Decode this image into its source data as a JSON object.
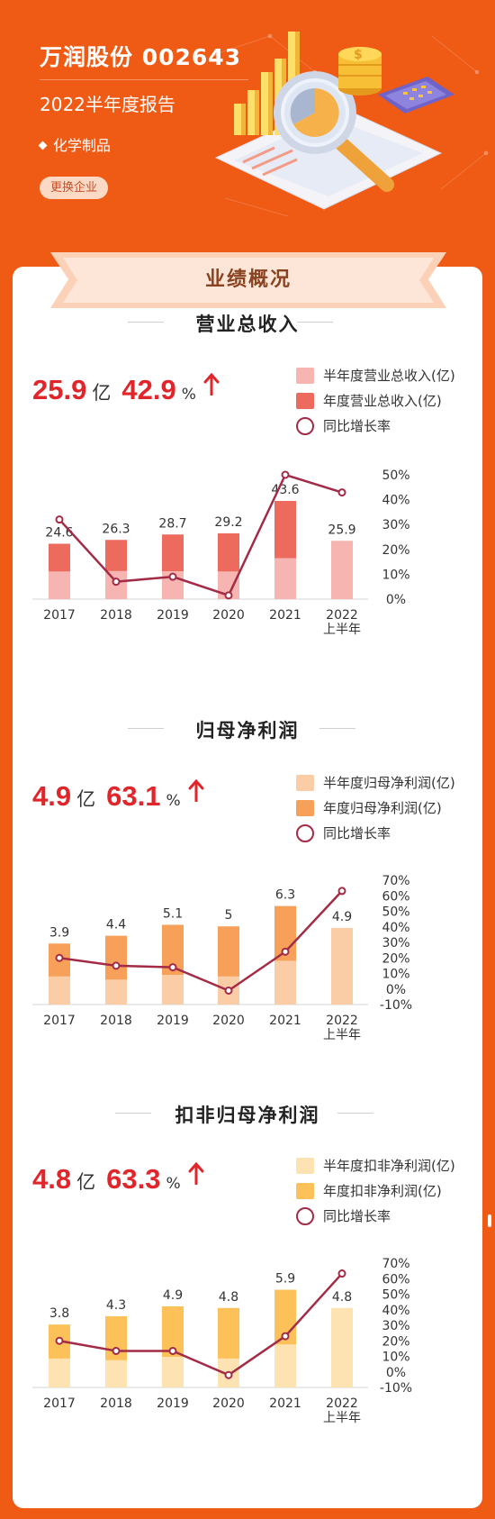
{
  "header": {
    "title": "万润股份 002643",
    "subtitle": "2022半年度报告",
    "industry": "化学制品",
    "change_button": "更换企业"
  },
  "banner": {
    "title": "业绩概况"
  },
  "colors": {
    "background": "#ef5a14",
    "growth_line": "#a32b46",
    "highlight_red": "#e0262a"
  },
  "sections": [
    {
      "title": "营业总收入",
      "big_value": "25.9",
      "big_unit": "亿",
      "growth": "42.9",
      "growth_unit": "%",
      "legend": [
        "半年度营业总收入(亿)",
        "年度营业总收入(亿)",
        "同比增长率"
      ],
      "colors": {
        "half": "#f6b5b0",
        "annual": "#ec6a5e"
      }
    },
    {
      "title": "归母净利润",
      "big_value": "4.9",
      "big_unit": "亿",
      "growth": "63.1",
      "growth_unit": "%",
      "legend": [
        "半年度归母净利润(亿)",
        "年度归母净利润(亿)",
        "同比增长率"
      ],
      "colors": {
        "half": "#fbcda6",
        "annual": "#f6a05a"
      }
    },
    {
      "title": "扣非归母净利润",
      "big_value": "4.8",
      "big_unit": "亿",
      "growth": "63.3",
      "growth_unit": "%",
      "legend": [
        "半年度扣非净利润(亿)",
        "年度扣非净利润(亿)",
        "同比增长率"
      ],
      "colors": {
        "half": "#fde3b2",
        "annual": "#fcc159"
      }
    }
  ],
  "chart_data": [
    {
      "type": "bar",
      "categories": [
        "2017",
        "2018",
        "2019",
        "2020",
        "2021",
        "2022\n上半年"
      ],
      "series": [
        {
          "name": "半年度营业总收入(亿)",
          "values": [
            12.3,
            12.5,
            12.4,
            12.3,
            18.2,
            25.9
          ]
        },
        {
          "name": "年度营业总收入(亿)",
          "values": [
            24.6,
            26.3,
            28.7,
            29.2,
            43.6,
            null
          ]
        },
        {
          "name": "同比增长率",
          "values": [
            32,
            7,
            9,
            1.5,
            50,
            42.9
          ]
        }
      ],
      "bar_labels": [
        "24.6",
        "26.3",
        "28.7",
        "29.2",
        "43.6",
        "25.9"
      ],
      "y2_ticks": [
        "0%",
        "10%",
        "20%",
        "30%",
        "40%",
        "50%"
      ],
      "y2lim": [
        0,
        50
      ],
      "ylim": [
        0,
        50
      ]
    },
    {
      "type": "bar",
      "categories": [
        "2017",
        "2018",
        "2019",
        "2020",
        "2021",
        "2022\n上半年"
      ],
      "series": [
        {
          "name": "半年度归母净利润(亿)",
          "values": [
            1.8,
            1.6,
            1.9,
            1.8,
            2.8,
            4.9
          ]
        },
        {
          "name": "年度归母净利润(亿)",
          "values": [
            3.9,
            4.4,
            5.1,
            5.0,
            6.3,
            null
          ]
        },
        {
          "name": "同比增长率",
          "values": [
            20,
            15,
            14,
            -1,
            24,
            63.1
          ]
        }
      ],
      "bar_labels": [
        "3.9",
        "4.4",
        "5.1",
        "5",
        "6.3",
        "4.9"
      ],
      "y2_ticks": [
        "-10%",
        "0%",
        "10%",
        "20%",
        "30%",
        "40%",
        "50%",
        "60%",
        "70%"
      ],
      "y2lim": [
        -10,
        70
      ],
      "ylim": [
        0,
        7.2
      ]
    },
    {
      "type": "bar",
      "categories": [
        "2017",
        "2018",
        "2019",
        "2020",
        "2021",
        "2022\n上半年"
      ],
      "series": [
        {
          "name": "半年度扣非净利润(亿)",
          "values": [
            1.75,
            1.65,
            1.85,
            1.75,
            2.6,
            4.8
          ]
        },
        {
          "name": "年度扣非净利润(亿)",
          "values": [
            3.8,
            4.3,
            4.9,
            4.8,
            5.9,
            null
          ]
        },
        {
          "name": "同比增长率",
          "values": [
            20,
            13.5,
            13.5,
            -2,
            23,
            63.3
          ]
        }
      ],
      "bar_labels": [
        "3.8",
        "4.3",
        "4.9",
        "4.8",
        "5.9",
        "4.8"
      ],
      "y2_ticks": [
        "-10%",
        "0%",
        "10%",
        "20%",
        "30%",
        "40%",
        "50%",
        "60%",
        "70%"
      ],
      "y2lim": [
        -10,
        70
      ],
      "ylim": [
        0,
        6.8
      ]
    }
  ]
}
